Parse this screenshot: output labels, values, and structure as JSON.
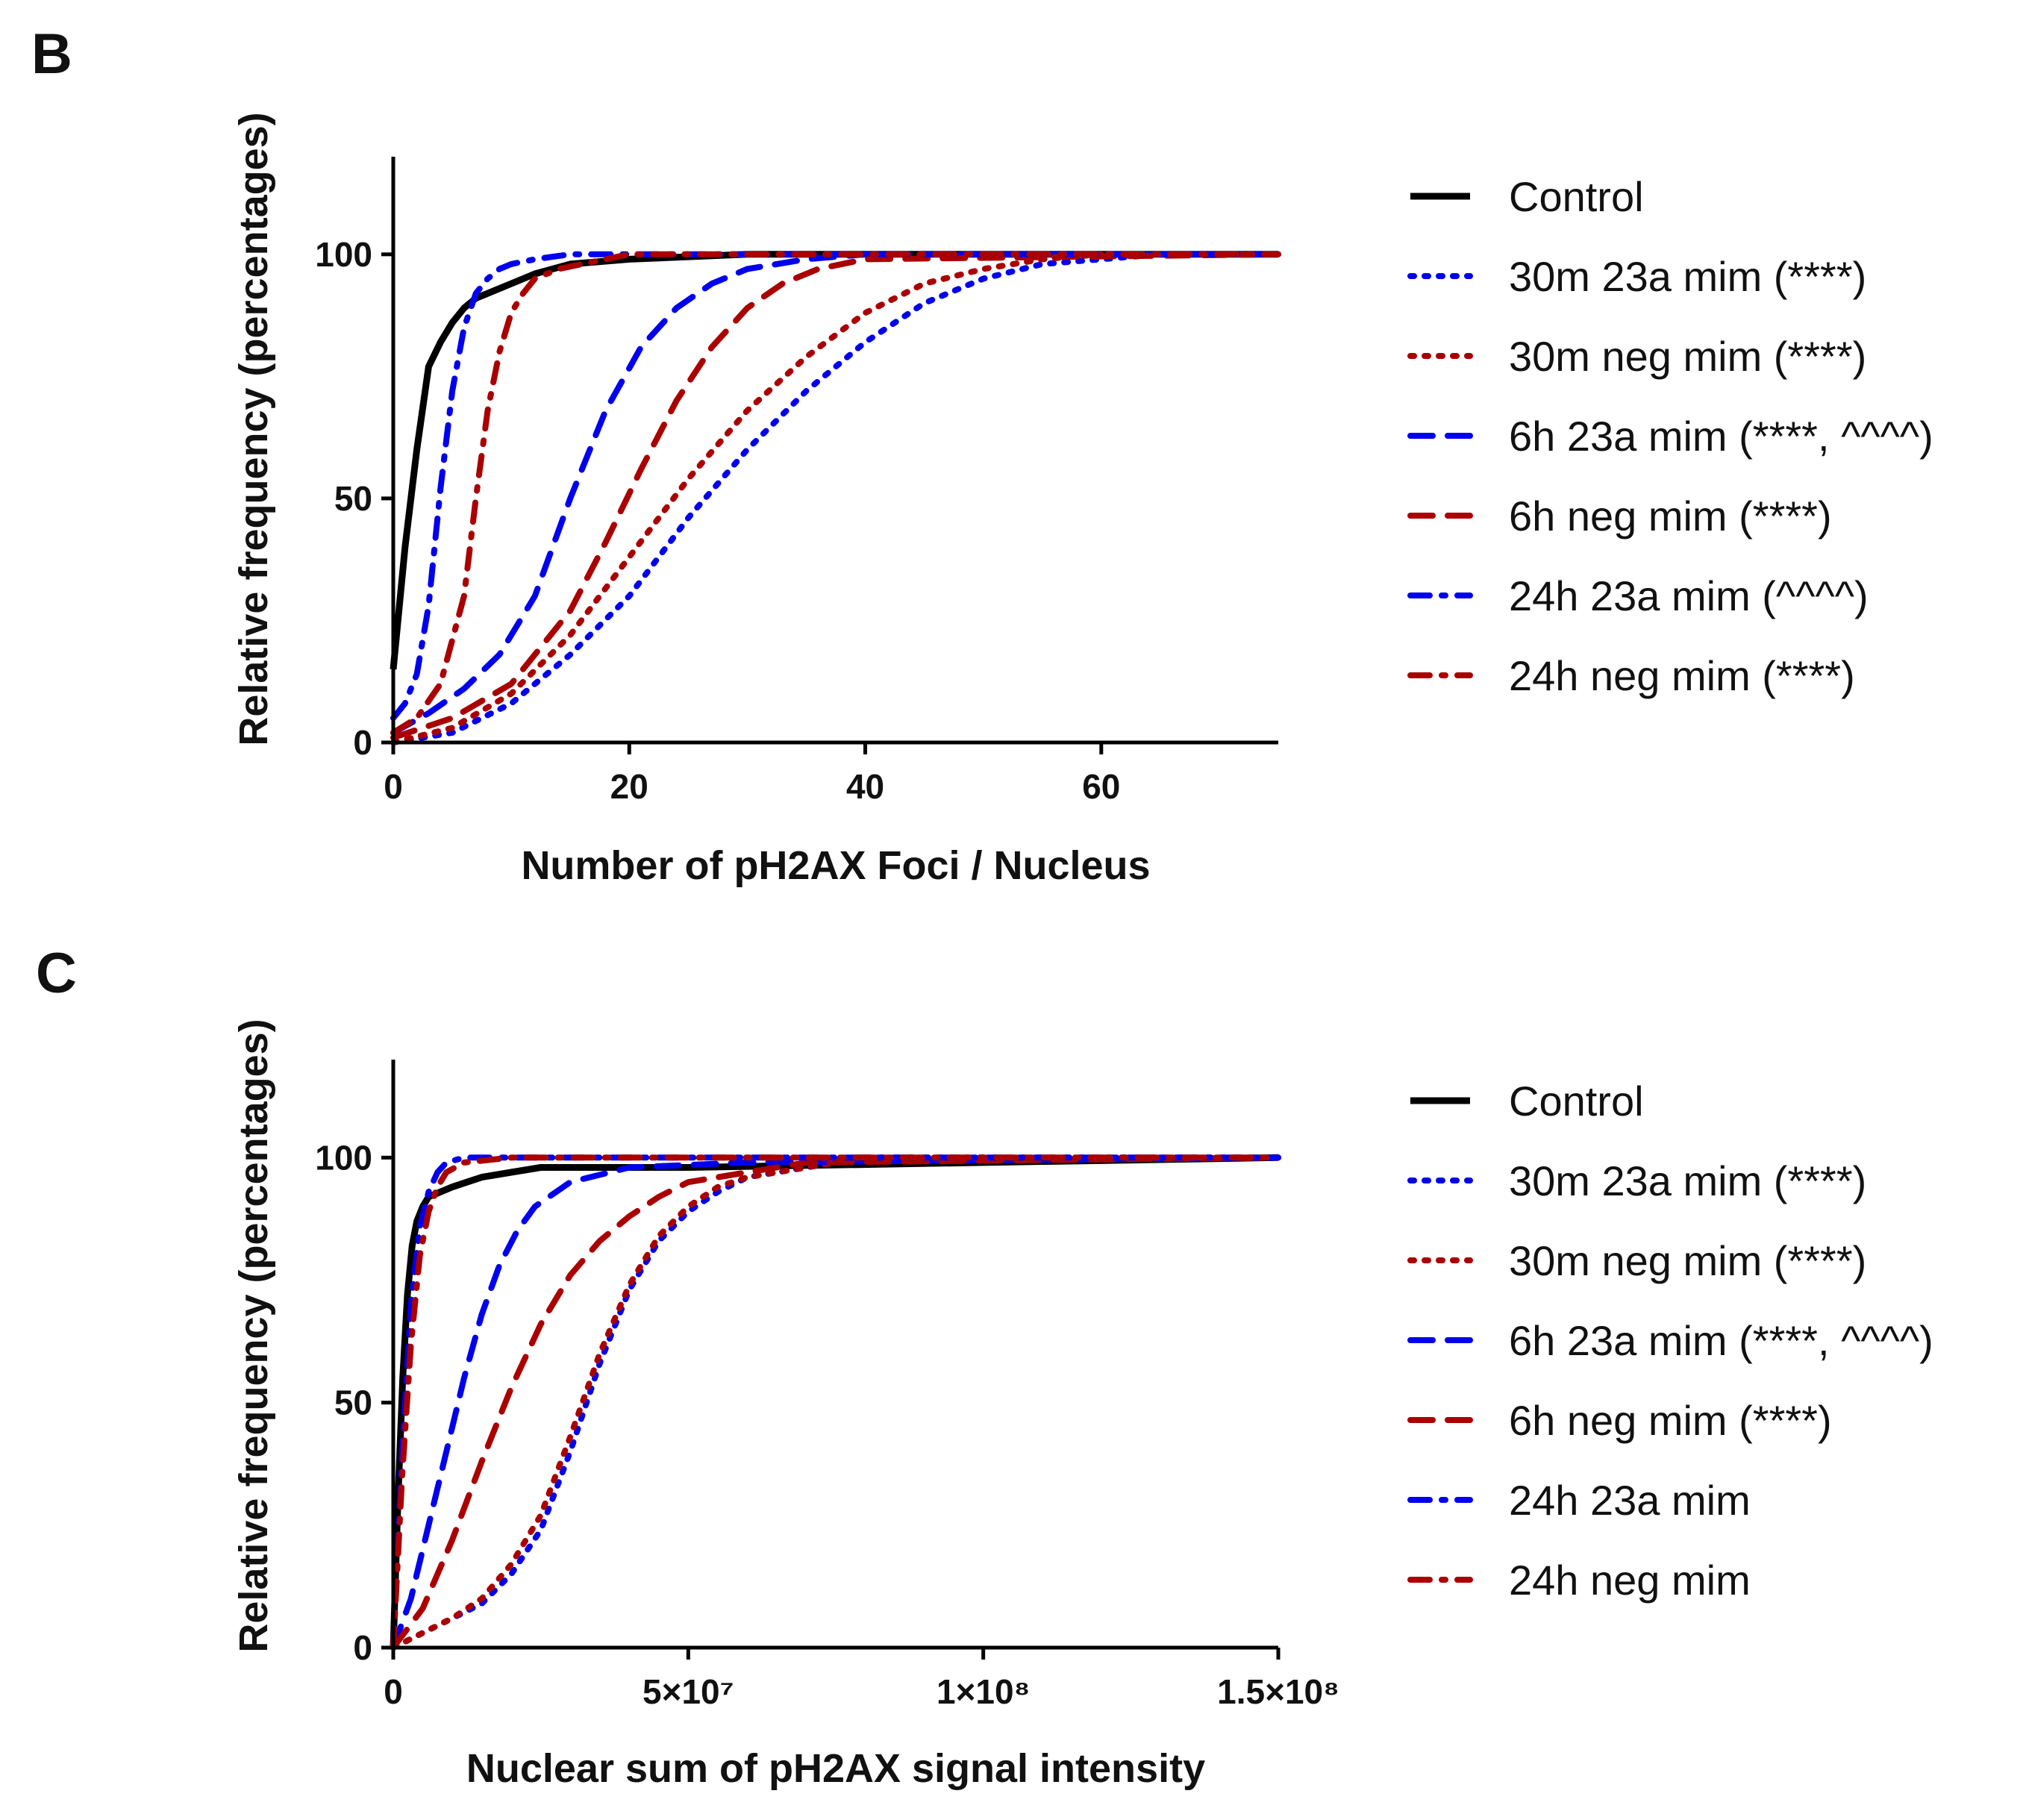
{
  "panels": {
    "b": {
      "letter": "B"
    },
    "c": {
      "letter": "C"
    }
  },
  "colors": {
    "control": "#000000",
    "blue": "#0000EE",
    "red": "#AA0000"
  },
  "chart_data": [
    {
      "type": "line",
      "panel": "B",
      "xlabel": "Number of pH2AX Foci / Nucleus",
      "ylabel": "Relative frequency (percentages)",
      "xlim": [
        0,
        75
      ],
      "ylim": [
        0,
        120
      ],
      "xticks": [
        0,
        20,
        40,
        60
      ],
      "xtick_labels": [
        "0",
        "20",
        "40",
        "60"
      ],
      "yticks": [
        0,
        50,
        100
      ],
      "ytick_labels": [
        "0",
        "50",
        "100"
      ],
      "legend_position": "right",
      "series": [
        {
          "name": "Control",
          "color": "#000000",
          "style": "solid",
          "x": [
            0,
            1,
            2,
            3,
            4,
            5,
            6,
            7,
            8,
            10,
            12,
            15,
            20,
            30,
            75
          ],
          "y": [
            15,
            40,
            60,
            77,
            82,
            86,
            89,
            91,
            92,
            94,
            96,
            98,
            99,
            100,
            100
          ]
        },
        {
          "name": "30m 23a mim (****)",
          "color": "#0000EE",
          "style": "dotted",
          "x": [
            0,
            5,
            10,
            15,
            20,
            25,
            30,
            35,
            40,
            45,
            50,
            55,
            60,
            65,
            75
          ],
          "y": [
            0,
            2,
            8,
            18,
            30,
            46,
            60,
            72,
            82,
            90,
            95,
            98,
            99,
            100,
            100
          ]
        },
        {
          "name": "30m neg mim (****)",
          "color": "#AA0000",
          "style": "dotted",
          "x": [
            0,
            5,
            10,
            15,
            20,
            25,
            30,
            35,
            40,
            45,
            50,
            55,
            60,
            75
          ],
          "y": [
            0,
            3,
            10,
            22,
            38,
            54,
            68,
            79,
            88,
            94,
            97,
            99,
            100,
            100
          ]
        },
        {
          "name": "6h 23a mim (****, ^^^^)",
          "color": "#0000EE",
          "style": "dashed",
          "x": [
            0,
            3,
            6,
            9,
            12,
            15,
            18,
            21,
            24,
            27,
            30,
            35,
            40,
            75
          ],
          "y": [
            2,
            6,
            11,
            18,
            30,
            50,
            68,
            81,
            89,
            94,
            97,
            99,
            100,
            100
          ]
        },
        {
          "name": "6h neg mim (****)",
          "color": "#AA0000",
          "style": "dashed",
          "x": [
            0,
            5,
            10,
            15,
            18,
            21,
            24,
            27,
            30,
            33,
            36,
            40,
            75
          ],
          "y": [
            1,
            5,
            12,
            27,
            41,
            56,
            70,
            81,
            89,
            94,
            97,
            99,
            100
          ]
        },
        {
          "name": "24h 23a mim (^^^^)",
          "color": "#0000EE",
          "style": "dashdot",
          "x": [
            0,
            1,
            2,
            3,
            4,
            5,
            6,
            7,
            8,
            9,
            10,
            12,
            15,
            20,
            75
          ],
          "y": [
            5,
            8,
            14,
            28,
            52,
            72,
            85,
            92,
            95,
            97,
            98,
            99,
            100,
            100,
            100
          ]
        },
        {
          "name": "24h neg mim (****)",
          "color": "#AA0000",
          "style": "dashdot",
          "x": [
            0,
            2,
            4,
            6,
            7,
            8,
            9,
            10,
            11,
            12,
            14,
            16,
            20,
            75
          ],
          "y": [
            2,
            5,
            12,
            30,
            50,
            68,
            80,
            88,
            92,
            95,
            97,
            98,
            100,
            100
          ]
        }
      ]
    },
    {
      "type": "line",
      "panel": "C",
      "xlabel": "Nuclear sum of pH2AX signal intensity",
      "ylabel": "Relative frequency (percentages)",
      "xlim": [
        0,
        150000000
      ],
      "ylim": [
        0,
        120
      ],
      "xticks": [
        0,
        50000000,
        100000000,
        150000000
      ],
      "xtick_labels": [
        "0",
        "5×10⁷",
        "1×10⁸",
        "1.5×10⁸"
      ],
      "yticks": [
        0,
        50,
        100
      ],
      "ytick_labels": [
        "0",
        "50",
        "100"
      ],
      "legend_position": "right",
      "series": [
        {
          "name": "Control",
          "color": "#000000",
          "style": "solid",
          "x": [
            0,
            800000,
            1600000,
            2400000,
            3200000,
            4000000,
            5000000,
            6000000,
            8000000,
            10000000,
            15000000,
            20000000,
            25000000,
            50000000,
            100000000,
            150000000
          ],
          "y": [
            0,
            30,
            55,
            72,
            82,
            87,
            90,
            92,
            93,
            94,
            96,
            97,
            98,
            98,
            99,
            100
          ]
        },
        {
          "name": "30m 23a mim (****)",
          "color": "#0000EE",
          "style": "dotted",
          "x": [
            0,
            5000000,
            10000000,
            15000000,
            20000000,
            25000000,
            30000000,
            35000000,
            40000000,
            45000000,
            50000000,
            55000000,
            60000000,
            70000000,
            80000000,
            150000000
          ],
          "y": [
            0,
            3,
            6,
            9,
            15,
            24,
            40,
            58,
            73,
            83,
            89,
            93,
            96,
            98,
            100,
            100
          ]
        },
        {
          "name": "30m neg mim (****)",
          "color": "#AA0000",
          "style": "dotted",
          "x": [
            0,
            5000000,
            10000000,
            15000000,
            20000000,
            25000000,
            30000000,
            35000000,
            40000000,
            45000000,
            50000000,
            55000000,
            60000000,
            70000000,
            80000000,
            150000000
          ],
          "y": [
            0,
            3,
            6,
            10,
            17,
            27,
            43,
            60,
            74,
            84,
            90,
            94,
            96,
            98,
            100,
            100
          ]
        },
        {
          "name": "6h 23a mim (****, ^^^^)",
          "color": "#0000EE",
          "style": "dashed",
          "x": [
            0,
            3000000,
            6000000,
            9000000,
            12000000,
            15000000,
            18000000,
            21000000,
            24000000,
            30000000,
            40000000,
            60000000,
            150000000
          ],
          "y": [
            0,
            10,
            25,
            40,
            55,
            68,
            78,
            85,
            90,
            95,
            98,
            99,
            100
          ]
        },
        {
          "name": "6h neg mim (****)",
          "color": "#AA0000",
          "style": "dashed",
          "x": [
            0,
            5000000,
            10000000,
            15000000,
            20000000,
            25000000,
            30000000,
            35000000,
            40000000,
            45000000,
            50000000,
            60000000,
            70000000,
            150000000
          ],
          "y": [
            0,
            8,
            22,
            38,
            53,
            66,
            76,
            83,
            88,
            92,
            95,
            97,
            99,
            100
          ]
        },
        {
          "name": "24h 23a mim",
          "color": "#0000EE",
          "style": "dashdot",
          "x": [
            0,
            1500000,
            3000000,
            4500000,
            6000000,
            7500000,
            9000000,
            12000000,
            20000000,
            150000000
          ],
          "y": [
            0,
            40,
            70,
            86,
            93,
            97,
            99,
            100,
            100,
            100
          ]
        },
        {
          "name": "24h neg mim",
          "color": "#AA0000",
          "style": "dashdot",
          "x": [
            0,
            1500000,
            3000000,
            4500000,
            6000000,
            7500000,
            9000000,
            12000000,
            20000000,
            150000000
          ],
          "y": [
            0,
            35,
            62,
            80,
            89,
            94,
            97,
            99,
            100,
            100
          ]
        }
      ]
    }
  ]
}
